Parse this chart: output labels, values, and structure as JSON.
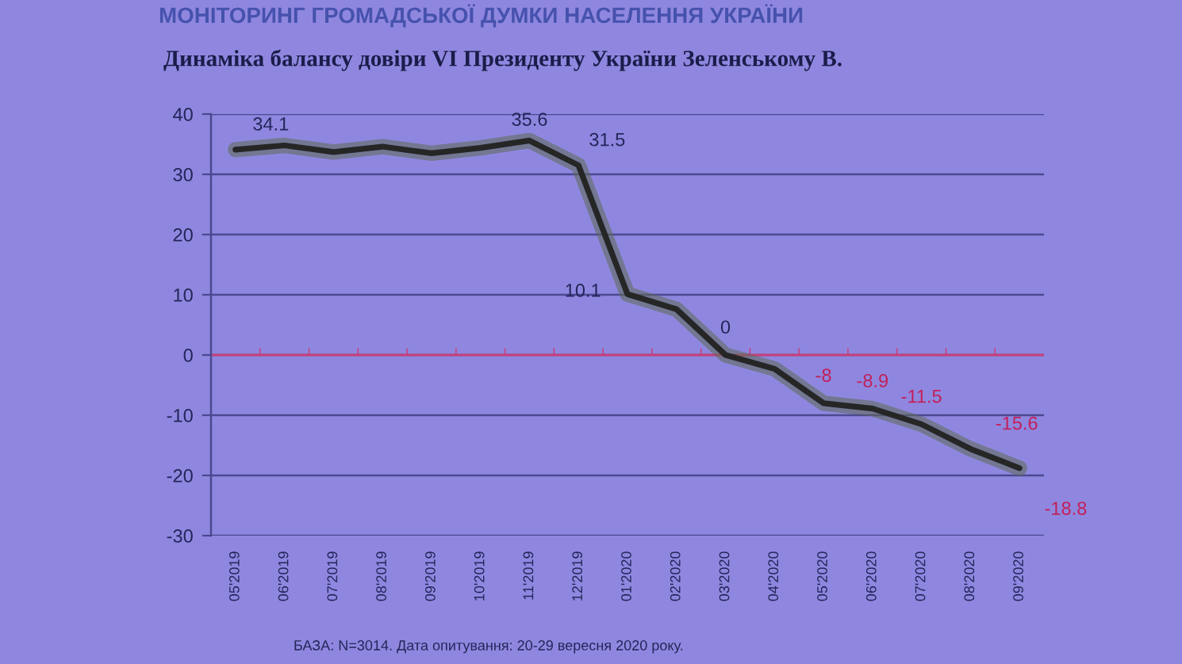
{
  "chart_data": {
    "type": "line",
    "title": "МОНІТОРИНГ ГРОМАДСЬКОЇ ДУМКИ НАСЕЛЕННЯ УКРАЇНИ",
    "subtitle": "Динаміка балансу довіри VI Президенту України Зеленському В.",
    "annotations": [
      "БАЗА: N=3014. Дата опитування: 20-29 вересня 2020 року."
    ],
    "categories": [
      "05'2019",
      "06'2019",
      "07'2019",
      "08'2019",
      "09'2019",
      "10'2019",
      "11'2019",
      "12'2019",
      "01'2020",
      "02'2020",
      "03'2020",
      "04'2020",
      "05'2020",
      "06'2020",
      "07'2020",
      "08'2020",
      "09'2020"
    ],
    "values": [
      34.1,
      34.8,
      33.7,
      34.6,
      33.5,
      34.4,
      35.6,
      31.5,
      10.1,
      7.6,
      0,
      -2.3,
      -8,
      -8.9,
      -11.5,
      -15.6,
      -18.8
    ],
    "color": "#262626",
    "value_labels": [
      "34.1",
      null,
      null,
      null,
      null,
      null,
      "35.6",
      "31.5",
      "10.1",
      null,
      "0",
      null,
      "-8",
      "-8.9",
      "-11.5",
      "-15.6",
      "-18.8"
    ],
    "ylim": [
      -30,
      40
    ],
    "yticks": [
      -30,
      -20,
      -10,
      0,
      10,
      20,
      30,
      40
    ],
    "ref_lines": [
      {
        "axis": "y",
        "value": 0,
        "color": "#c8407c"
      }
    ],
    "grid": "y",
    "marker": "none",
    "line_style": "solid"
  }
}
